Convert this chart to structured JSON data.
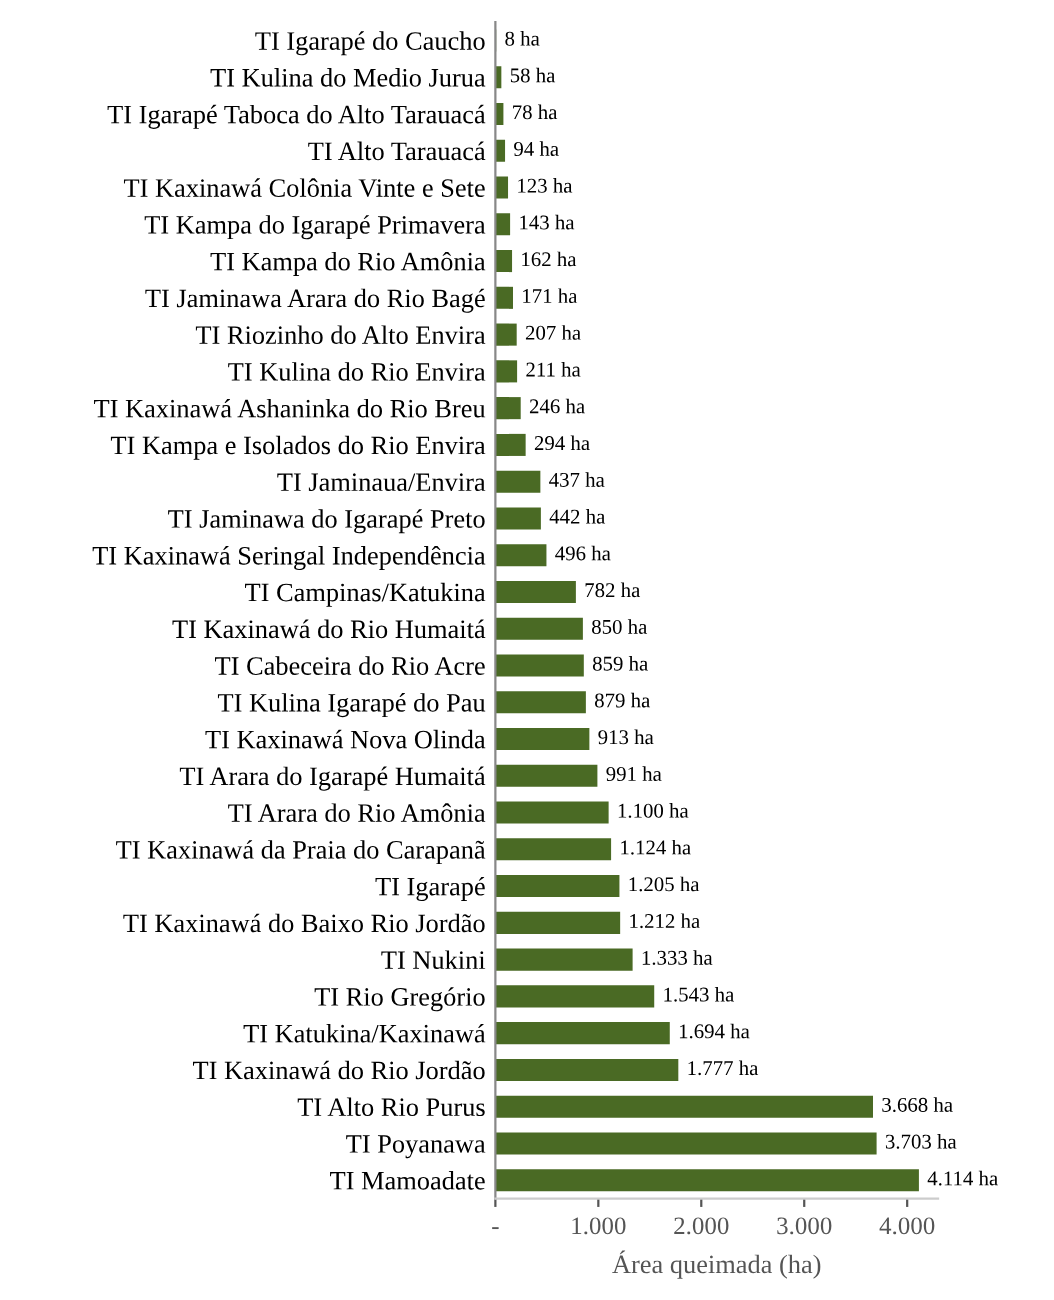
{
  "chart_data": {
    "type": "bar",
    "orientation": "horizontal",
    "xlabel": "Área queimada (ha)",
    "categories": [
      "TI Igarapé do Caucho",
      "TI Kulina do Medio Jurua",
      "TI Igarapé Taboca do Alto Tarauacá",
      "TI Alto Tarauacá",
      "TI Kaxinawá Colônia Vinte e Sete",
      "TI Kampa do Igarapé Primavera",
      "TI Kampa do Rio Amônia",
      "TI Jaminawa Arara do Rio Bagé",
      "TI Riozinho do Alto Envira",
      "TI Kulina do Rio Envira",
      "TI Kaxinawá Ashaninka do Rio Breu",
      "TI Kampa e Isolados do Rio Envira",
      "TI Jaminaua/Envira",
      "TI Jaminawa do Igarapé Preto",
      "TI Kaxinawá Seringal Independência",
      "TI Campinas/Katukina",
      "TI Kaxinawá do Rio Humaitá",
      "TI Cabeceira do Rio Acre",
      "TI Kulina Igarapé do Pau",
      "TI Kaxinawá Nova Olinda",
      "TI Arara do Igarapé Humaitá",
      "TI Arara do Rio Amônia",
      "TI Kaxinawá da Praia do Carapanã",
      "TI Igarapé",
      "TI Kaxinawá do Baixo Rio Jordão",
      "TI Nukini",
      "TI Rio Gregório",
      "TI Katukina/Kaxinawá",
      "TI Kaxinawá do Rio Jordão",
      "TI Alto Rio Purus",
      "TI Poyanawa",
      "TI Mamoadate"
    ],
    "values": [
      8,
      58,
      78,
      94,
      123,
      143,
      162,
      171,
      207,
      211,
      246,
      294,
      437,
      442,
      496,
      782,
      850,
      859,
      879,
      913,
      991,
      1100,
      1124,
      1205,
      1212,
      1333,
      1543,
      1694,
      1777,
      3668,
      3703,
      4114
    ],
    "value_labels": [
      "8 ha",
      "58 ha",
      "78 ha",
      "94 ha",
      "123 ha",
      "143 ha",
      "162 ha",
      "171 ha",
      "207 ha",
      "211 ha",
      "246 ha",
      "294 ha",
      "437 ha",
      "442 ha",
      "496 ha",
      "782 ha",
      "850 ha",
      "859 ha",
      "879 ha",
      "913 ha",
      "991 ha",
      "1.100 ha",
      "1.124 ha",
      "1.205 ha",
      "1.212 ha",
      "1.333 ha",
      "1.543 ha",
      "1.694 ha",
      "1.777 ha",
      "3.668 ha",
      "3.703 ha",
      "4.114 ha"
    ],
    "color": "#4a6a24",
    "xlim": [
      0,
      4300
    ],
    "xticks": [
      {
        "value": 0,
        "label": "-"
      },
      {
        "value": 1000,
        "label": "1.000"
      },
      {
        "value": 2000,
        "label": "2.000"
      },
      {
        "value": 3000,
        "label": "3.000"
      },
      {
        "value": 4000,
        "label": "4.000"
      }
    ],
    "grid": false,
    "legend": false
  }
}
